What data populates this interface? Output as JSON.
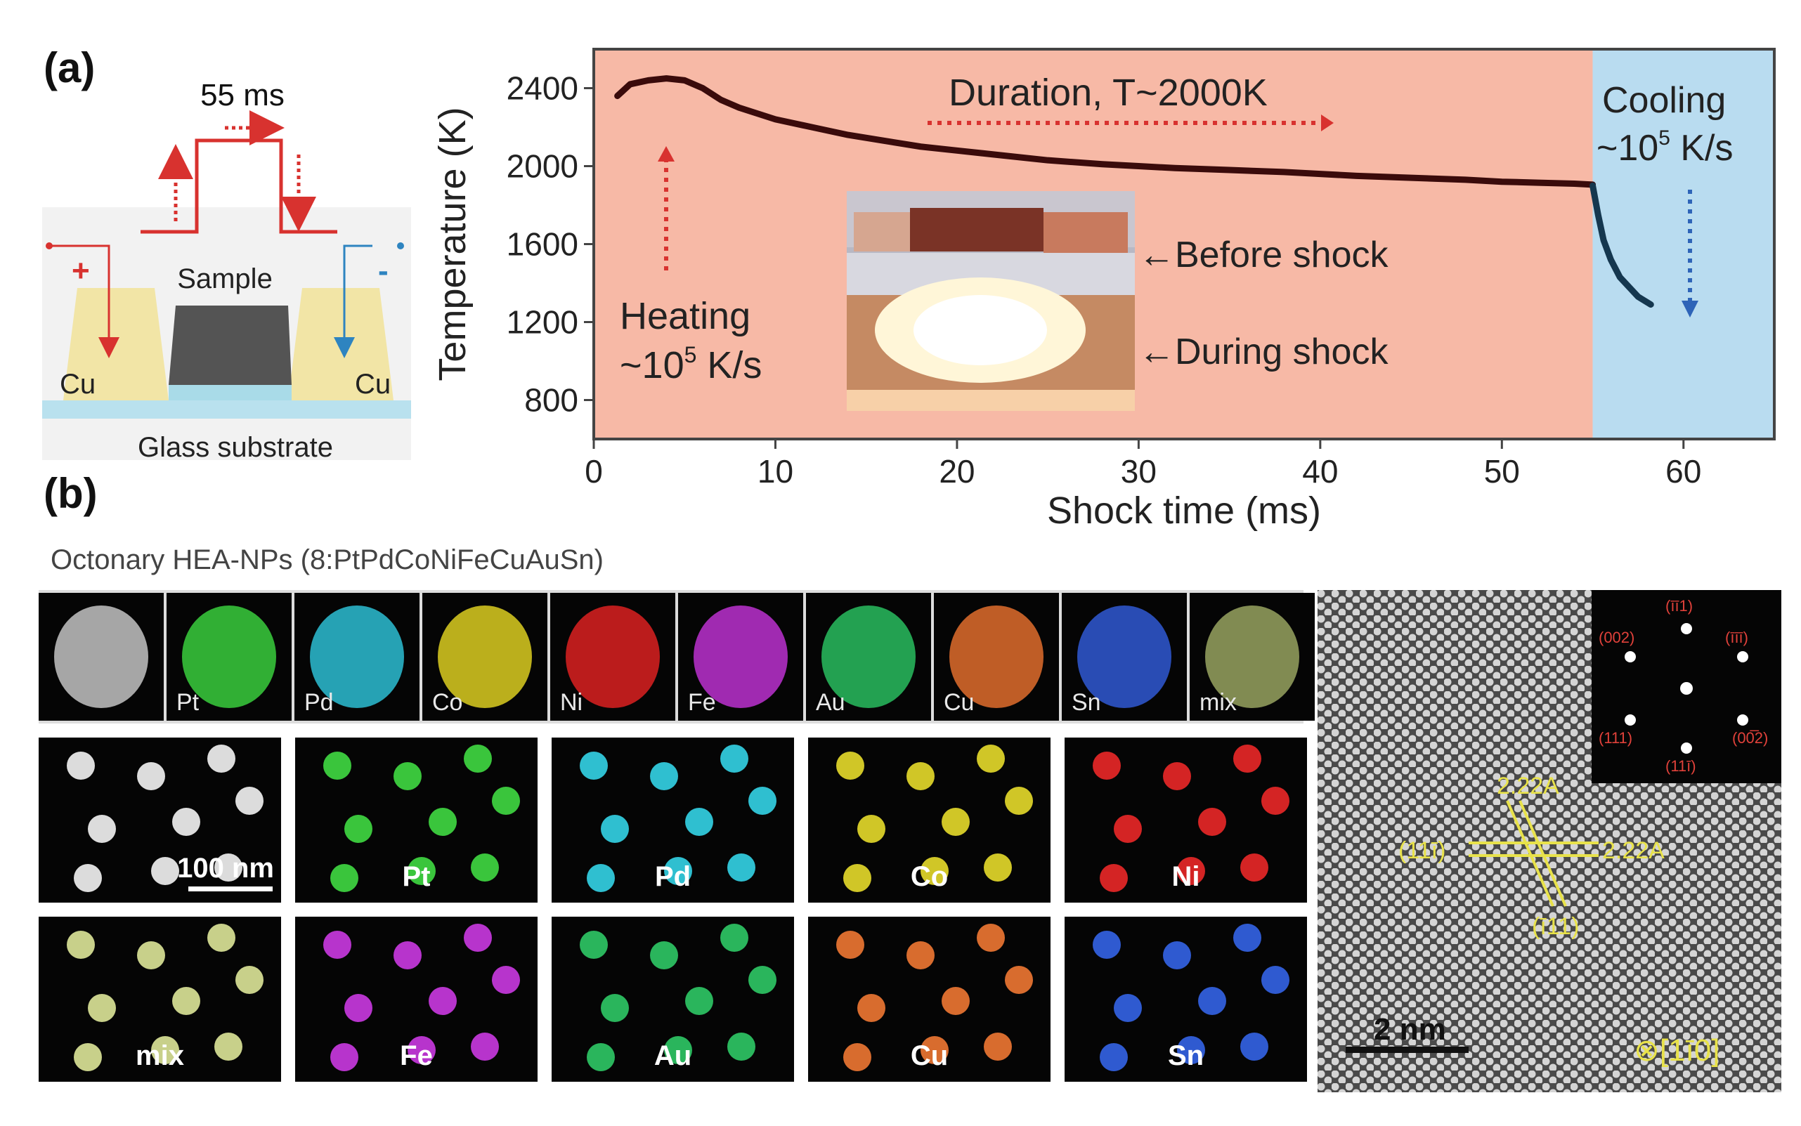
{
  "panel_a": {
    "letter": "(a)",
    "schematic": {
      "pulse_label": "55 ms",
      "plus": "+",
      "minus": "-",
      "sample": "Sample",
      "electrode_left": "Cu",
      "electrode_right": "Cu",
      "substrate": "Glass substrate"
    },
    "chart_data": {
      "type": "line",
      "xlabel": "Shock time (ms)",
      "ylabel": "Temperature (K)",
      "xlim": [
        0,
        65
      ],
      "ylim": [
        600,
        2600
      ],
      "x_ticks": [
        0,
        10,
        20,
        30,
        40,
        50,
        60
      ],
      "y_ticks": [
        800,
        1200,
        1600,
        2000,
        2400
      ],
      "regions": [
        {
          "from": 0,
          "to": 55,
          "color": "#f7b9a6"
        },
        {
          "from": 55,
          "to": 65,
          "color": "#b9dcf0"
        }
      ],
      "series": [
        {
          "color": "#3a0b0b",
          "x": [
            1.3,
            2,
            3,
            4,
            5,
            6,
            7,
            8,
            10,
            12,
            14,
            16,
            18,
            20,
            22,
            25,
            28,
            30,
            32,
            35,
            38,
            40,
            42,
            45,
            48,
            50,
            52,
            54,
            55
          ],
          "y": [
            2360,
            2420,
            2440,
            2450,
            2440,
            2400,
            2340,
            2300,
            2240,
            2200,
            2160,
            2130,
            2100,
            2080,
            2060,
            2030,
            2010,
            2000,
            1990,
            1980,
            1970,
            1960,
            1950,
            1940,
            1930,
            1920,
            1915,
            1910,
            1905
          ]
        },
        {
          "color": "#15374f",
          "x": [
            55,
            55.3,
            55.6,
            56,
            56.5,
            57,
            57.5,
            58.2
          ],
          "y": [
            1900,
            1750,
            1620,
            1520,
            1430,
            1380,
            1330,
            1290
          ]
        }
      ]
    },
    "annotations": {
      "duration": "Duration, T~2000K",
      "heating_line1": "Heating",
      "heating_line2_base": "~10",
      "heating_line2_sup": "5",
      "heating_line2_unit": " K/s",
      "cooling_line1": "Cooling",
      "cooling_line2_base": "~10",
      "cooling_line2_sup": "5",
      "cooling_line2_unit": " K/s",
      "before_shock": "←Before shock",
      "during_shock": "←During shock"
    }
  },
  "panel_b": {
    "letter": "(b)",
    "title": "Octonary HEA-NPs (8:PtPdCoNiFeCuAuSn)",
    "top_row": [
      {
        "label": "",
        "color": "#b8b8b8"
      },
      {
        "label": "Pt",
        "color": "#36c23a"
      },
      {
        "label": "Pd",
        "color": "#2ab4c8"
      },
      {
        "label": "Co",
        "color": "#cfc21f"
      },
      {
        "label": "Ni",
        "color": "#cf1f1f"
      },
      {
        "label": "Fe",
        "color": "#b12fc4"
      },
      {
        "label": "Au",
        "color": "#27b35a"
      },
      {
        "label": "Cu",
        "color": "#d4672a"
      },
      {
        "label": "Sn",
        "color": "#2d54c8"
      },
      {
        "label": "mix",
        "color": "#8f9a5b"
      }
    ],
    "grid": [
      {
        "label": "100 nm",
        "color": "#dcdcdc"
      },
      {
        "label": "Pt",
        "color": "#3ac53c"
      },
      {
        "label": "Pd",
        "color": "#2fbfd0"
      },
      {
        "label": "Co",
        "color": "#d0c627"
      },
      {
        "label": "Ni",
        "color": "#d42424"
      },
      {
        "label": "mix",
        "color": "#c8d08a"
      },
      {
        "label": "Fe",
        "color": "#b734cc"
      },
      {
        "label": "Au",
        "color": "#2ab55c"
      },
      {
        "label": "Cu",
        "color": "#d86c2e"
      },
      {
        "label": "Sn",
        "color": "#2f5ad0"
      }
    ],
    "hrtem": {
      "scale_bar": "2 nm",
      "spacing_1": "2.22A",
      "spacing_2": "2.22A",
      "plane_1": "(11ī)",
      "plane_2": "(ī11)",
      "zone_axis": "⊗[1ī0]",
      "fft_labels": [
        "(002)",
        "(īī1)",
        "(īīī)",
        "(111)",
        "(11ī)",
        "(00̅2)"
      ]
    }
  }
}
